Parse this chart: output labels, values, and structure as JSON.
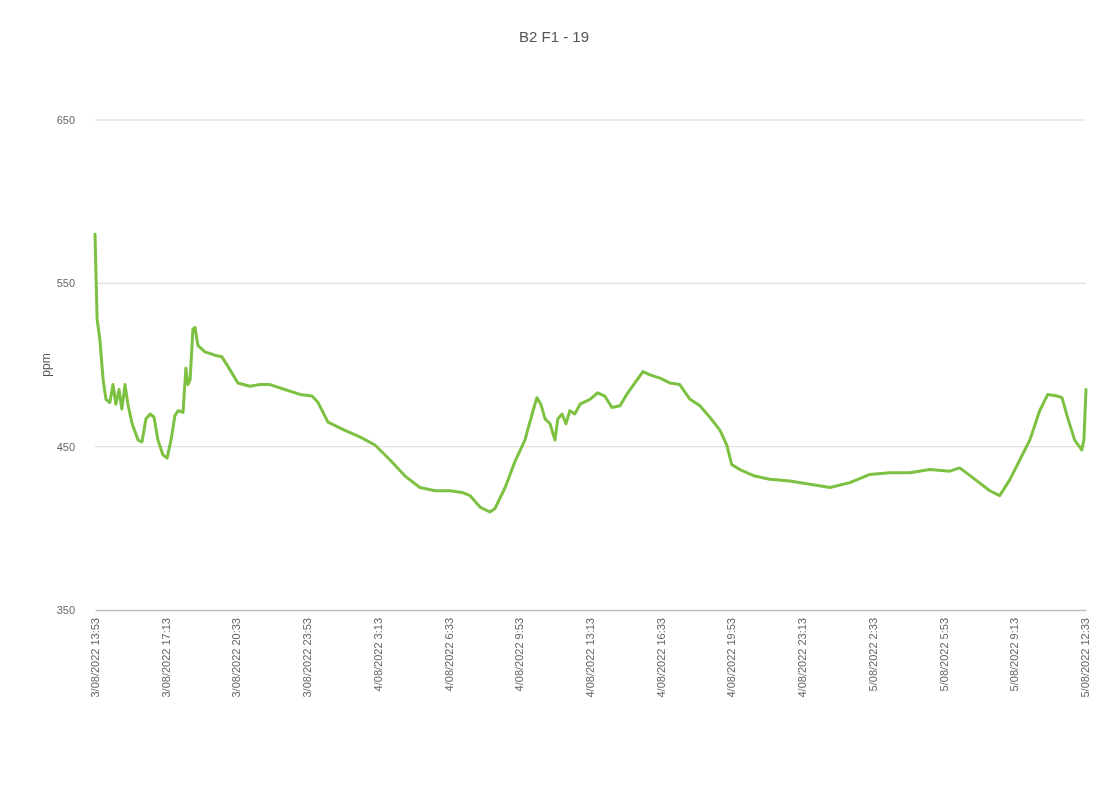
{
  "chart_data": {
    "type": "line",
    "title": "B2 F1 - 19",
    "ylabel": "ppm",
    "grid": "y",
    "line_style": "solid",
    "marker": "none",
    "xlim": [
      "2022-08-03T13:53",
      "2022-08-05T12:36"
    ],
    "ylim": [
      350,
      650
    ],
    "yticks": [
      350,
      450,
      550,
      650
    ],
    "xticks": [
      {
        "value": "2022-08-03T13:53",
        "label": "3/08/2022 13:53"
      },
      {
        "value": "2022-08-03T17:13",
        "label": "3/08/2022 17:13"
      },
      {
        "value": "2022-08-03T20:33",
        "label": "3/08/2022 20:33"
      },
      {
        "value": "2022-08-03T23:53",
        "label": "3/08/2022 23:53"
      },
      {
        "value": "2022-08-04T03:13",
        "label": "4/08/2022 3:13"
      },
      {
        "value": "2022-08-04T06:33",
        "label": "4/08/2022 6:33"
      },
      {
        "value": "2022-08-04T09:53",
        "label": "4/08/2022 9:53"
      },
      {
        "value": "2022-08-04T13:13",
        "label": "4/08/2022 13:13"
      },
      {
        "value": "2022-08-04T16:33",
        "label": "4/08/2022 16:33"
      },
      {
        "value": "2022-08-04T19:53",
        "label": "4/08/2022 19:53"
      },
      {
        "value": "2022-08-04T23:13",
        "label": "4/08/2022 23:13"
      },
      {
        "value": "2022-08-05T02:33",
        "label": "5/08/2022 2:33"
      },
      {
        "value": "2022-08-05T05:53",
        "label": "5/08/2022 5:53"
      },
      {
        "value": "2022-08-05T09:13",
        "label": "5/08/2022 9:13"
      },
      {
        "value": "2022-08-05T12:33",
        "label": "5/08/2022 12:33"
      }
    ],
    "x": [
      "2022-08-03T13:53",
      "2022-08-03T13:59",
      "2022-08-03T14:07",
      "2022-08-03T14:16",
      "2022-08-03T14:24",
      "2022-08-03T14:35",
      "2022-08-03T14:44",
      "2022-08-03T14:52",
      "2022-08-03T15:01",
      "2022-08-03T15:09",
      "2022-08-03T15:18",
      "2022-08-03T15:26",
      "2022-08-03T15:38",
      "2022-08-03T15:55",
      "2022-08-03T16:06",
      "2022-08-03T16:17",
      "2022-08-03T16:29",
      "2022-08-03T16:40",
      "2022-08-03T16:51",
      "2022-08-03T17:05",
      "2022-08-03T17:17",
      "2022-08-03T17:28",
      "2022-08-03T17:39",
      "2022-08-03T17:48",
      "2022-08-03T18:02",
      "2022-08-03T18:10",
      "2022-08-03T18:16",
      "2022-08-03T18:22",
      "2022-08-03T18:30",
      "2022-08-03T18:36",
      "2022-08-03T18:44",
      "2022-08-03T19:04",
      "2022-08-03T19:32",
      "2022-08-03T19:52",
      "2022-08-03T20:15",
      "2022-08-03T20:37",
      "2022-08-03T21:11",
      "2022-08-03T21:40",
      "2022-08-03T22:08",
      "2022-08-03T22:50",
      "2022-08-03T23:33",
      "2022-08-04T00:07",
      "2022-08-04T00:24",
      "2022-08-04T00:52",
      "2022-08-04T01:40",
      "2022-08-04T02:22",
      "2022-08-04T03:05",
      "2022-08-04T03:47",
      "2022-08-04T04:30",
      "2022-08-04T05:12",
      "2022-08-04T05:55",
      "2022-08-04T06:37",
      "2022-08-04T07:11",
      "2022-08-04T07:34",
      "2022-08-04T08:02",
      "2022-08-04T08:30",
      "2022-08-04T08:44",
      "2022-08-04T09:13",
      "2022-08-04T09:41",
      "2022-08-04T10:09",
      "2022-08-04T10:32",
      "2022-08-04T10:43",
      "2022-08-04T10:54",
      "2022-08-04T11:06",
      "2022-08-04T11:20",
      "2022-08-04T11:34",
      "2022-08-04T11:42",
      "2022-08-04T11:54",
      "2022-08-04T12:05",
      "2022-08-04T12:16",
      "2022-08-04T12:30",
      "2022-08-04T12:45",
      "2022-08-04T13:13",
      "2022-08-04T13:35",
      "2022-08-04T13:55",
      "2022-08-04T14:15",
      "2022-08-04T14:38",
      "2022-08-04T14:57",
      "2022-08-04T15:20",
      "2022-08-04T15:43",
      "2022-08-04T16:03",
      "2022-08-04T16:31",
      "2022-08-04T16:59",
      "2022-08-04T17:27",
      "2022-08-04T17:56",
      "2022-08-04T18:24",
      "2022-08-04T18:52",
      "2022-08-04T19:21",
      "2022-08-04T19:40",
      "2022-08-04T19:54",
      "2022-08-04T20:17",
      "2022-08-04T20:59",
      "2022-08-04T21:42",
      "2022-08-04T22:38",
      "2022-08-04T23:35",
      "2022-08-05T00:32",
      "2022-08-05T01:28",
      "2022-08-05T02:25",
      "2022-08-05T03:21",
      "2022-08-05T04:18",
      "2022-08-05T05:14",
      "2022-08-05T06:11",
      "2022-08-05T06:39",
      "2022-08-05T07:22",
      "2022-08-05T08:04",
      "2022-08-05T08:32",
      "2022-08-05T09:01",
      "2022-08-05T09:29",
      "2022-08-05T09:57",
      "2022-08-05T10:25",
      "2022-08-05T10:48",
      "2022-08-05T11:14",
      "2022-08-05T11:28",
      "2022-08-05T11:45",
      "2022-08-05T12:04",
      "2022-08-05T12:24",
      "2022-08-05T12:30",
      "2022-08-05T12:36"
    ],
    "series": [
      {
        "color": "#7cc142",
        "values": [
          580,
          528,
          515,
          491,
          479,
          477,
          488,
          476,
          485,
          473,
          488,
          476,
          464,
          454,
          453,
          467,
          470,
          468,
          454,
          445,
          443,
          454,
          469,
          472,
          471,
          498,
          488,
          491,
          522,
          523,
          512,
          508,
          506,
          505,
          497,
          489,
          487,
          488,
          488,
          485,
          482,
          481,
          477,
          465,
          460,
          456,
          451,
          442,
          432,
          425,
          423,
          423,
          422,
          420,
          413,
          410,
          412,
          425,
          441,
          454,
          472,
          480,
          476,
          467,
          464,
          454,
          467,
          470,
          464,
          472,
          470,
          476,
          479,
          483,
          481,
          474,
          475,
          482,
          489,
          496,
          494,
          492,
          489,
          488,
          479,
          475,
          468,
          460,
          451,
          439,
          436,
          432,
          430,
          429,
          427,
          425,
          428,
          433,
          434,
          434,
          436,
          435,
          437,
          430,
          423,
          420,
          430,
          442,
          454,
          472,
          482,
          481,
          480,
          467,
          454,
          448,
          454,
          485
        ]
      }
    ]
  }
}
